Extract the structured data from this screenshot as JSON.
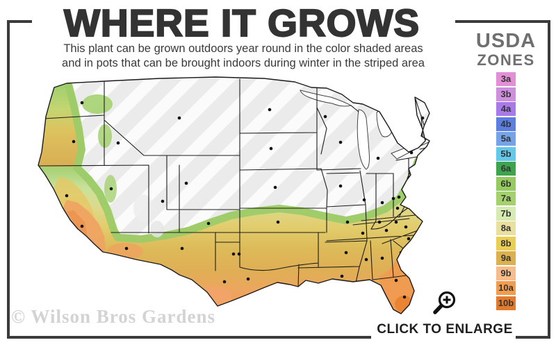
{
  "header": {
    "title": "WHERE IT GROWS",
    "subtitle_line1": "This plant can be grown outdoors year round in the color shaded areas",
    "subtitle_line2": "and in pots that can be brought indoors during winter in the striped area"
  },
  "legend": {
    "title_line1": "USDA",
    "title_line2": "ZONES",
    "zones": [
      {
        "label": "3a",
        "color": "#e28fd6"
      },
      {
        "label": "3b",
        "color": "#cf8fdf"
      },
      {
        "label": "4a",
        "color": "#a77ae8"
      },
      {
        "label": "4b",
        "color": "#5b7edf"
      },
      {
        "label": "5a",
        "color": "#74a3e8"
      },
      {
        "label": "5b",
        "color": "#63c8ea"
      },
      {
        "label": "6a",
        "color": "#3da44d"
      },
      {
        "label": "6b",
        "color": "#94ca60"
      },
      {
        "label": "7a",
        "color": "#a4d06e"
      },
      {
        "label": "7b",
        "color": "#d6ebb1"
      },
      {
        "label": "8a",
        "color": "#ebdf9d"
      },
      {
        "label": "8b",
        "color": "#e9cd55"
      },
      {
        "label": "9a",
        "color": "#dcb04f"
      },
      {
        "label": "9b",
        "color": "#f6bd8a"
      },
      {
        "label": "10a",
        "color": "#f29c4d"
      },
      {
        "label": "10b",
        "color": "#e27b2d"
      }
    ]
  },
  "map": {
    "watermark": "© Wilson Bros Gardens"
  },
  "actions": {
    "enlarge_label": "CLICK TO ENLARGE"
  }
}
